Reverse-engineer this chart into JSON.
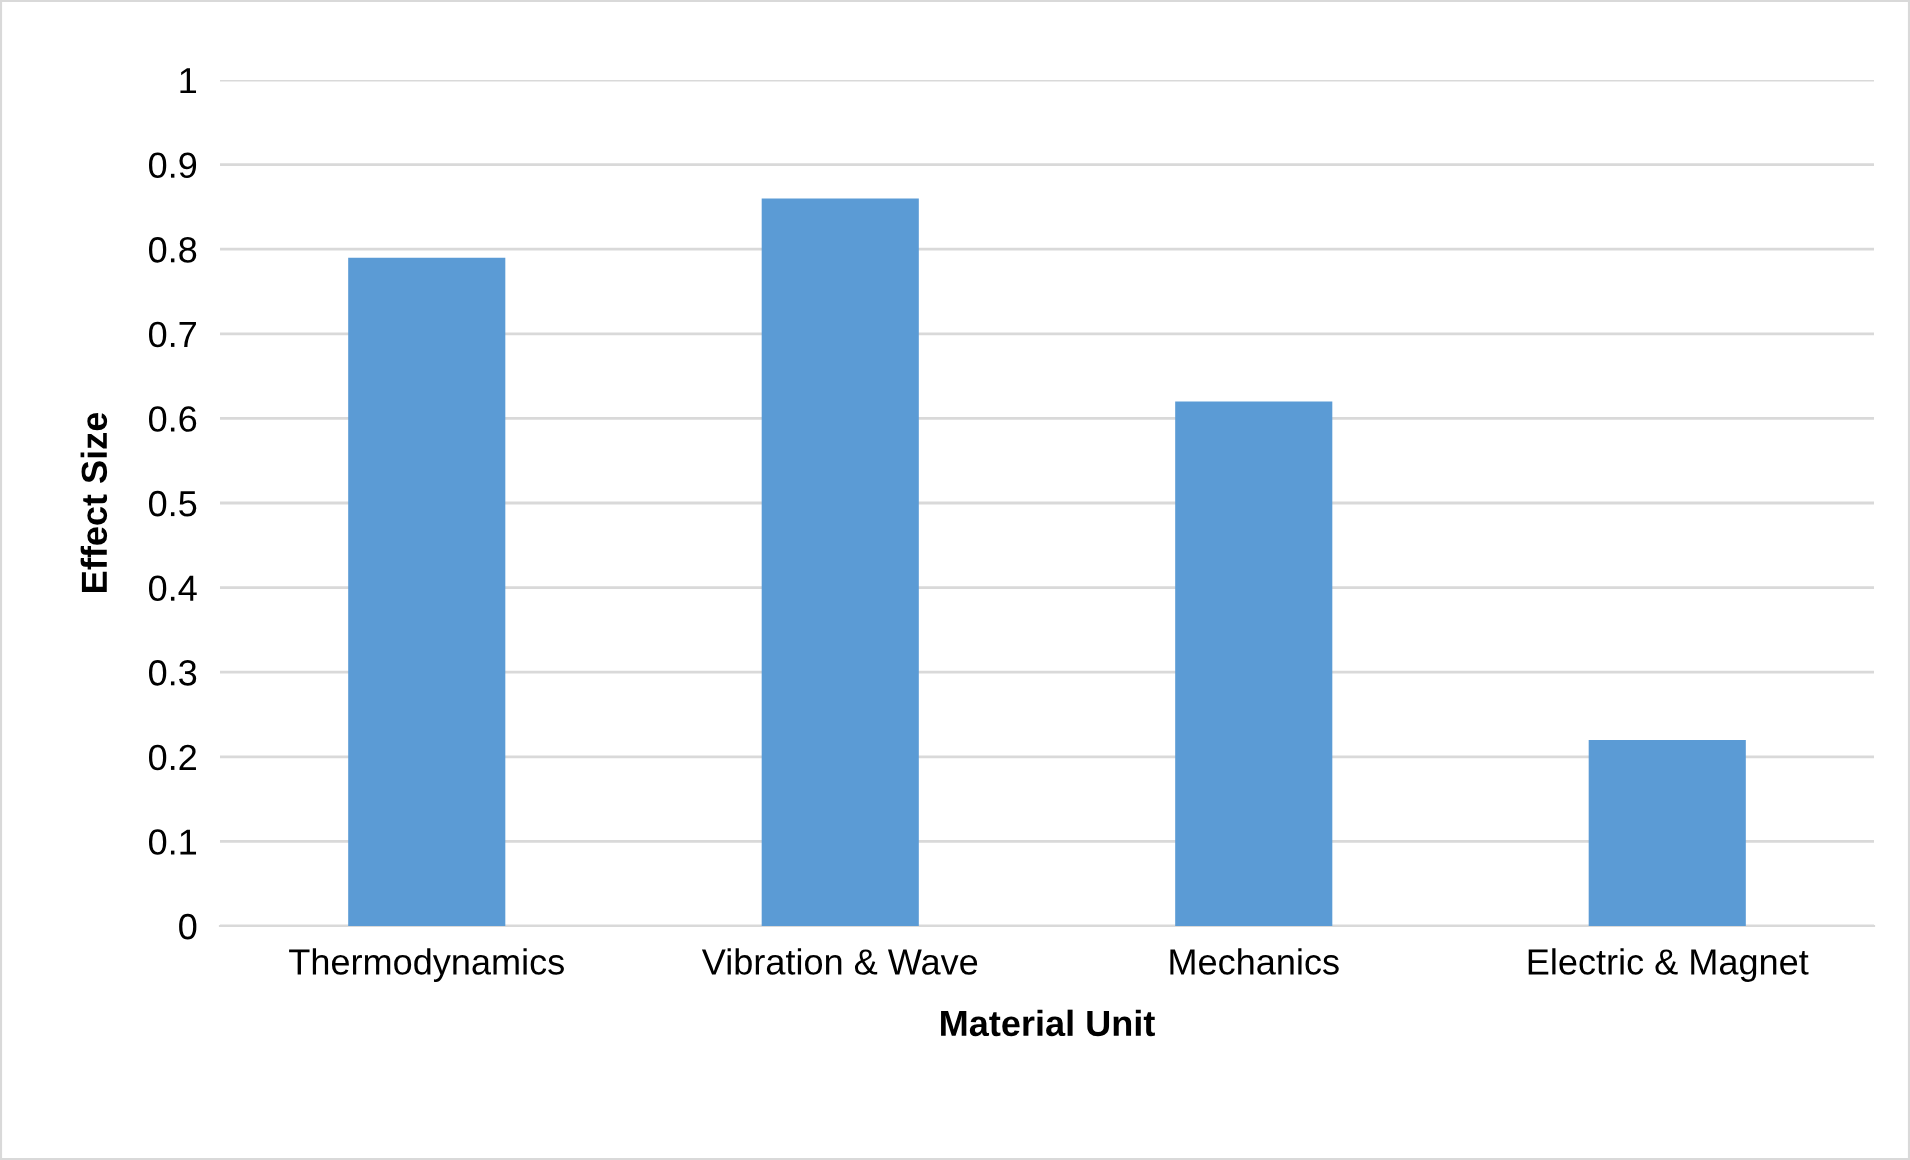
{
  "chart_data": {
    "type": "bar",
    "xlabel": "Material Unit",
    "ylabel": "Effect Size",
    "categories": [
      "Thermodynamics",
      "Vibration & Wave",
      "Mechanics",
      "Electric & Magnet"
    ],
    "values": [
      0.79,
      0.86,
      0.62,
      0.22
    ],
    "color": "#5b9bd5",
    "ylim": [
      0,
      1
    ],
    "yticks": [
      0,
      0.1,
      0.2,
      0.3,
      0.4,
      0.5,
      0.6,
      0.7,
      0.8,
      0.9,
      1
    ],
    "grid": "y",
    "legend": false
  }
}
